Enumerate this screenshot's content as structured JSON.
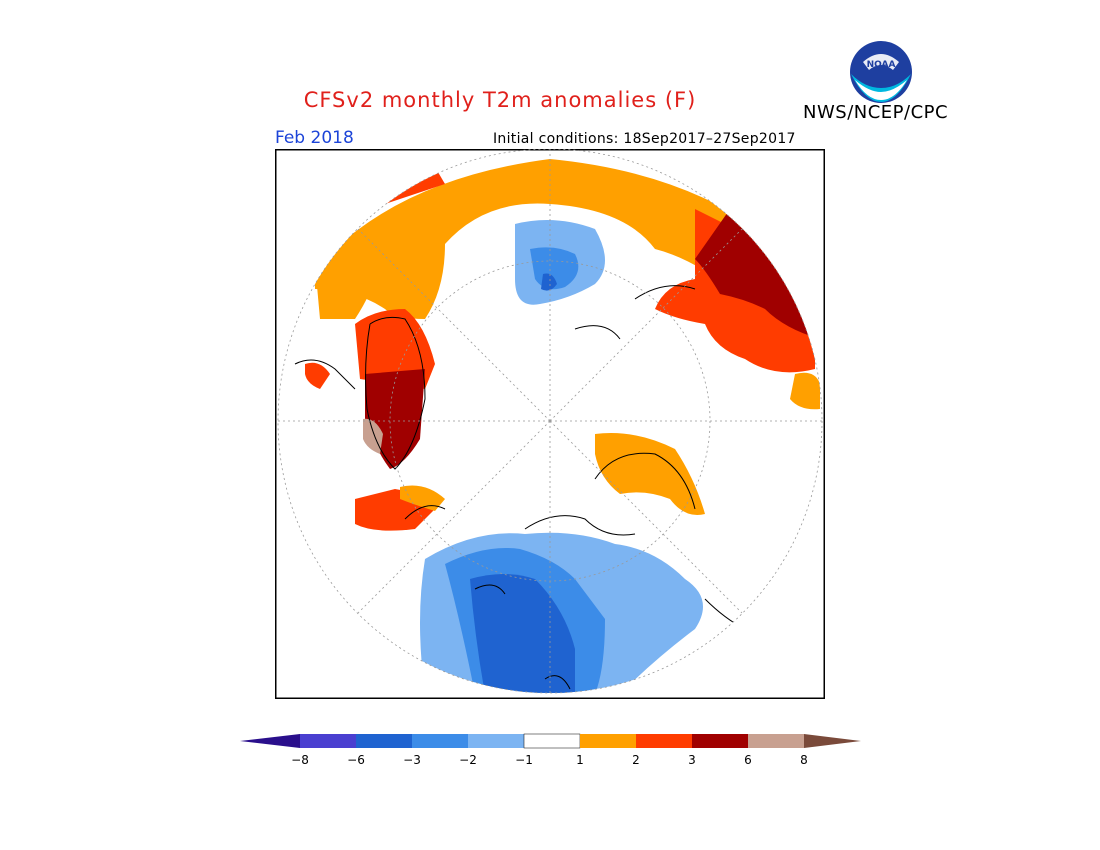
{
  "title": "CFSv2 monthly T2m anomalies (F)",
  "organization": "NWS/NCEP/CPC",
  "logo_text": "NOAA",
  "valid_month": "Feb 2018",
  "initial_conditions": "Initial conditions: 18Sep2017–27Sep2017",
  "colors": {
    "title": "#e0201b",
    "month": "#1c44d8",
    "lt_neg8": "#2a0f8c",
    "neg8_neg6": "#4a3fd0",
    "neg6_neg3": "#1f63d0",
    "neg3_neg2": "#3c8ce8",
    "neg2_neg1": "#7cb4f2",
    "neg1_1": "#ffffff",
    "p1_p2": "#ffa000",
    "p2_p3": "#ff3c00",
    "p3_p6": "#a00000",
    "p6_p8": "#c8a090",
    "gt_p8": "#7a4a3a"
  },
  "legend": {
    "ticks": [
      "−8",
      "−6",
      "−3",
      "−2",
      "−1",
      "1",
      "2",
      "3",
      "6",
      "8"
    ]
  },
  "regions": {
    "north_atlantic_europe_siberia": "positive",
    "greenland": "strong positive",
    "alaska": "positive",
    "canada_us": "negative",
    "arctic_ocean": "near normal"
  }
}
